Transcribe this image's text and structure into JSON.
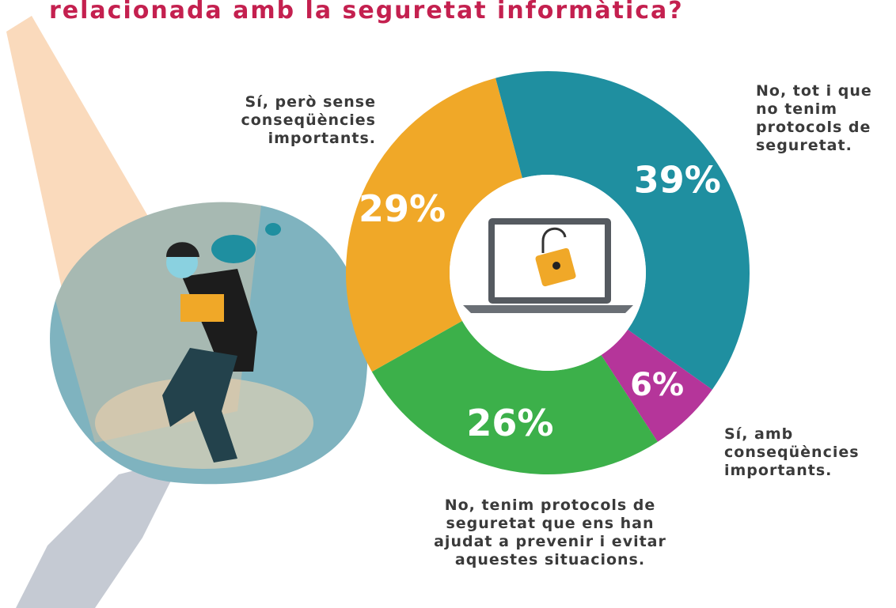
{
  "chart_data": {
    "type": "donut",
    "title": "relacionada amb la seguretat informàtica?",
    "categories": [
      "No, tot i que no tenim protocols de seguretat.",
      "Sí, amb conseqüències importants.",
      "No, tenim protocols de seguretat que ens han ajudat a prevenir i evitar aquestes situacions.",
      "Sí, però sense conseqüències importants."
    ],
    "values": [
      39,
      6,
      26,
      29
    ],
    "value_labels": [
      "39%",
      "6%",
      "26%",
      "29%"
    ],
    "colors": [
      "#1f8fa0",
      "#b5359a",
      "#3cb04a",
      "#f0a828"
    ]
  }
}
